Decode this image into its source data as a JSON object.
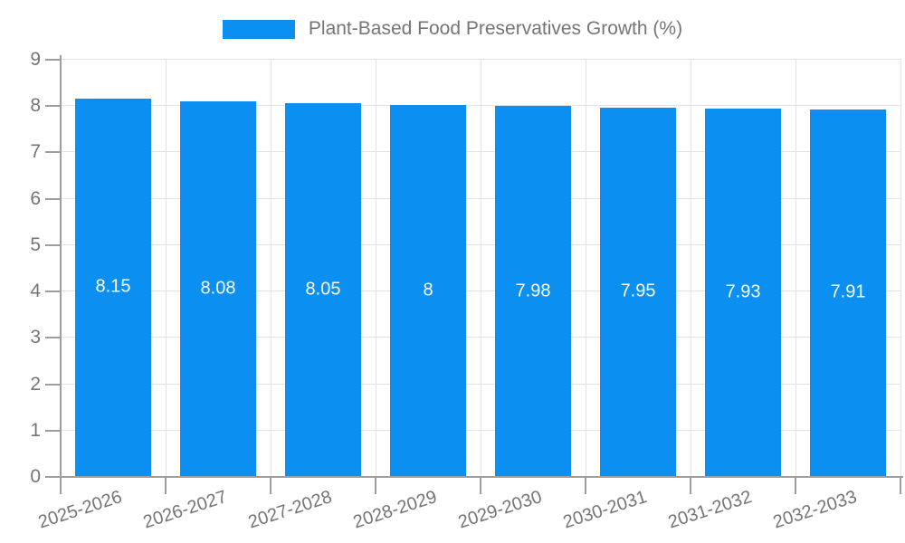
{
  "chart_data": {
    "type": "bar",
    "title": "Plant-Based Food Preservatives Growth (%)",
    "categories": [
      "2025-2026",
      "2026-2027",
      "2027-2028",
      "2028-2029",
      "2029-2030",
      "2030-2031",
      "2031-2032",
      "2032-2033"
    ],
    "values": [
      8.15,
      8.08,
      8.05,
      8,
      7.98,
      7.95,
      7.93,
      7.91
    ],
    "xlabel": "",
    "ylabel": "",
    "ylim": [
      0,
      9
    ],
    "yticks": [
      0,
      1,
      2,
      3,
      4,
      5,
      6,
      7,
      8,
      9
    ],
    "grid": true,
    "legend_position": "top",
    "x_label_rotation_deg": -18,
    "colors": {
      "bar": "#0b90f1",
      "bar_value_text": "#ffffff",
      "axis": "#9e9e9e",
      "grid": "#e3e3e3",
      "tick_text": "#757575"
    }
  }
}
